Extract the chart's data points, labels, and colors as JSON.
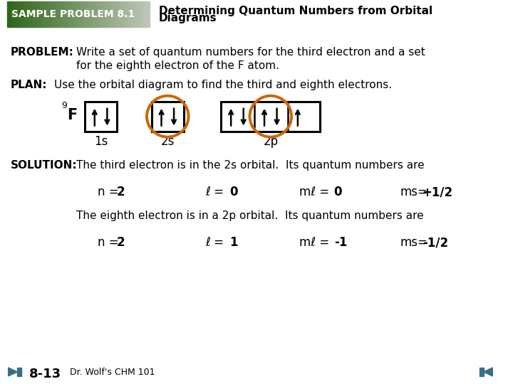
{
  "bg_color": "#ffffff",
  "header_label": "SAMPLE PROBLEM 8.1",
  "header_title_line1": "Determining Quantum Numbers from Orbital",
  "header_title_line2": "Diagrams",
  "problem_label": "PROBLEM:",
  "problem_text_line1": "Write a set of quantum numbers for the third electron and a set",
  "problem_text_line2": "for the eighth electron of the F atom.",
  "plan_label": "PLAN:",
  "plan_text": "Use the orbital diagram to find the third and eighth electrons.",
  "orbital_1s_label": "1s",
  "orbital_2s_label": "2s",
  "orbital_2p_label": "2p",
  "solution_label": "SOLUTION:",
  "solution_text1": "The third electron is in the 2s orbital.  Its quantum numbers are",
  "qn1_n_label": "n =",
  "qn1_n_val": "2",
  "qn1_l_label": "ℓ =",
  "qn1_l_val": "0",
  "qn1_ml_label": "mℓ =",
  "qn1_ml_val": "0",
  "qn1_ms_label": "ms=",
  "qn1_ms_val": "+1/2",
  "solution_text2": "The eighth electron is in a 2p orbital.  Its quantum numbers are",
  "qn2_n_label": "n =",
  "qn2_n_val": "2",
  "qn2_l_label": "ℓ =",
  "qn2_l_val": "1",
  "qn2_ml_label": "mℓ =",
  "qn2_ml_val": "-1",
  "qn2_ms_label": "ms=",
  "qn2_ms_val": "-1/2",
  "footer_page": "8-13",
  "footer_credit": "Dr. Wolf's CHM 101",
  "orange_color": "#cc6600",
  "nav_color": "#3a6e88",
  "box_color": "#000000",
  "text_color": "#000000",
  "header_green_dark": [
    0.18,
    0.4,
    0.1
  ],
  "header_green_light": [
    0.75,
    0.78,
    0.72
  ]
}
